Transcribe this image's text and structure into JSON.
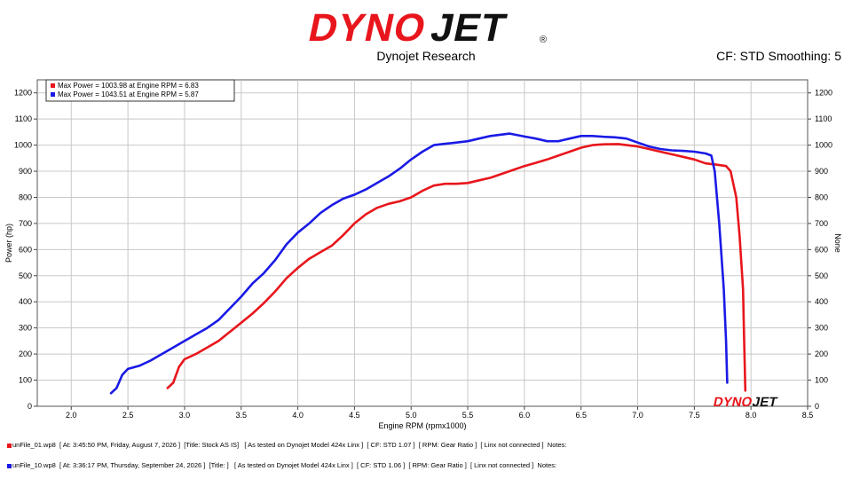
{
  "header": {
    "logo_text": "DYNOJET",
    "subtitle": "Dynojet Research",
    "cf_info": "CF: STD Smoothing: 5"
  },
  "legend": [
    {
      "text": "Max Power = 1003.98 at Engine RPM = 6.83",
      "color": "#e8161c"
    },
    {
      "text": "Max Power = 1043.51 at Engine RPM = 5.87",
      "color": "#1a1ae6"
    }
  ],
  "watermark": "DYNOJET",
  "footer": [
    {
      "text": "unFile_01.wp8  [ At: 3:45:50 PM, Friday, August 7, 2026 ]  [Title: Stock AS IS]   [ As tested on Dynojet Model 424x Linx ]  [ CF: STD 1.07 ]  [ RPM: Gear Ratio ]  [ Linx not connected ]  Notes:",
      "color": "#e8161c"
    },
    {
      "text": "unFile_10.wp8  [ At: 3:36:17 PM, Thursday, September 24, 2026 ]  [Title: ]   [ As tested on Dynojet Model 424x Linx ]  [ CF: STD 1.06 ]  [ RPM: Gear Ratio ]  [ Linx not connected ]  Notes:",
      "color": "#1a1ae6"
    }
  ],
  "chart_data": {
    "type": "line",
    "title": "",
    "xlabel": "Engine RPM (rpmx1000)",
    "ylabel": "Power (hp)",
    "y2label": "None",
    "xlim": [
      1.7,
      8.5
    ],
    "ylim": [
      0,
      1250
    ],
    "xticks": [
      "2.0",
      "2.5",
      "3.0",
      "3.5",
      "4.0",
      "4.5",
      "5.0",
      "5.5",
      "6.0",
      "6.5",
      "7.0",
      "7.5",
      "8.0",
      "8.5"
    ],
    "yticks": [
      "0",
      "100",
      "200",
      "300",
      "400",
      "500",
      "600",
      "700",
      "800",
      "900",
      "1000",
      "1100",
      "1200"
    ],
    "grid": true,
    "legend_position": "top-left",
    "series": [
      {
        "color": "#e8161c",
        "points": [
          [
            2.85,
            70
          ],
          [
            2.9,
            90
          ],
          [
            2.95,
            150
          ],
          [
            3.0,
            180
          ],
          [
            3.1,
            200
          ],
          [
            3.2,
            225
          ],
          [
            3.3,
            250
          ],
          [
            3.4,
            285
          ],
          [
            3.5,
            320
          ],
          [
            3.6,
            355
          ],
          [
            3.7,
            395
          ],
          [
            3.8,
            440
          ],
          [
            3.9,
            490
          ],
          [
            4.0,
            530
          ],
          [
            4.1,
            565
          ],
          [
            4.2,
            590
          ],
          [
            4.3,
            615
          ],
          [
            4.4,
            655
          ],
          [
            4.5,
            700
          ],
          [
            4.6,
            735
          ],
          [
            4.7,
            760
          ],
          [
            4.8,
            775
          ],
          [
            4.9,
            785
          ],
          [
            5.0,
            800
          ],
          [
            5.1,
            825
          ],
          [
            5.2,
            845
          ],
          [
            5.3,
            852
          ],
          [
            5.4,
            852
          ],
          [
            5.5,
            855
          ],
          [
            5.6,
            865
          ],
          [
            5.7,
            875
          ],
          [
            5.8,
            890
          ],
          [
            5.9,
            905
          ],
          [
            6.0,
            920
          ],
          [
            6.1,
            932
          ],
          [
            6.2,
            945
          ],
          [
            6.3,
            960
          ],
          [
            6.4,
            975
          ],
          [
            6.5,
            990
          ],
          [
            6.6,
            1000
          ],
          [
            6.7,
            1003
          ],
          [
            6.83,
            1004
          ],
          [
            6.9,
            1000
          ],
          [
            7.0,
            995
          ],
          [
            7.1,
            985
          ],
          [
            7.2,
            975
          ],
          [
            7.3,
            965
          ],
          [
            7.4,
            955
          ],
          [
            7.5,
            945
          ],
          [
            7.6,
            930
          ],
          [
            7.7,
            925
          ],
          [
            7.78,
            920
          ],
          [
            7.82,
            900
          ],
          [
            7.87,
            800
          ],
          [
            7.9,
            650
          ],
          [
            7.93,
            450
          ],
          [
            7.94,
            250
          ],
          [
            7.95,
            60
          ]
        ]
      },
      {
        "color": "#1a1ae6",
        "points": [
          [
            2.35,
            50
          ],
          [
            2.4,
            70
          ],
          [
            2.45,
            120
          ],
          [
            2.5,
            143
          ],
          [
            2.6,
            155
          ],
          [
            2.7,
            175
          ],
          [
            2.8,
            200
          ],
          [
            2.9,
            225
          ],
          [
            3.0,
            250
          ],
          [
            3.1,
            275
          ],
          [
            3.2,
            300
          ],
          [
            3.3,
            330
          ],
          [
            3.4,
            375
          ],
          [
            3.5,
            420
          ],
          [
            3.6,
            470
          ],
          [
            3.7,
            510
          ],
          [
            3.8,
            560
          ],
          [
            3.9,
            620
          ],
          [
            4.0,
            665
          ],
          [
            4.1,
            700
          ],
          [
            4.2,
            740
          ],
          [
            4.3,
            770
          ],
          [
            4.4,
            795
          ],
          [
            4.5,
            810
          ],
          [
            4.6,
            830
          ],
          [
            4.7,
            855
          ],
          [
            4.8,
            880
          ],
          [
            4.9,
            910
          ],
          [
            5.0,
            945
          ],
          [
            5.1,
            975
          ],
          [
            5.2,
            1000
          ],
          [
            5.3,
            1005
          ],
          [
            5.4,
            1010
          ],
          [
            5.5,
            1015
          ],
          [
            5.6,
            1025
          ],
          [
            5.7,
            1035
          ],
          [
            5.87,
            1044
          ],
          [
            6.0,
            1033
          ],
          [
            6.1,
            1025
          ],
          [
            6.2,
            1015
          ],
          [
            6.3,
            1015
          ],
          [
            6.4,
            1025
          ],
          [
            6.5,
            1035
          ],
          [
            6.6,
            1035
          ],
          [
            6.7,
            1032
          ],
          [
            6.8,
            1030
          ],
          [
            6.9,
            1025
          ],
          [
            7.0,
            1010
          ],
          [
            7.1,
            995
          ],
          [
            7.2,
            985
          ],
          [
            7.3,
            980
          ],
          [
            7.4,
            978
          ],
          [
            7.5,
            975
          ],
          [
            7.6,
            968
          ],
          [
            7.65,
            960
          ],
          [
            7.68,
            900
          ],
          [
            7.72,
            700
          ],
          [
            7.76,
            450
          ],
          [
            7.78,
            250
          ],
          [
            7.79,
            90
          ]
        ]
      }
    ]
  }
}
